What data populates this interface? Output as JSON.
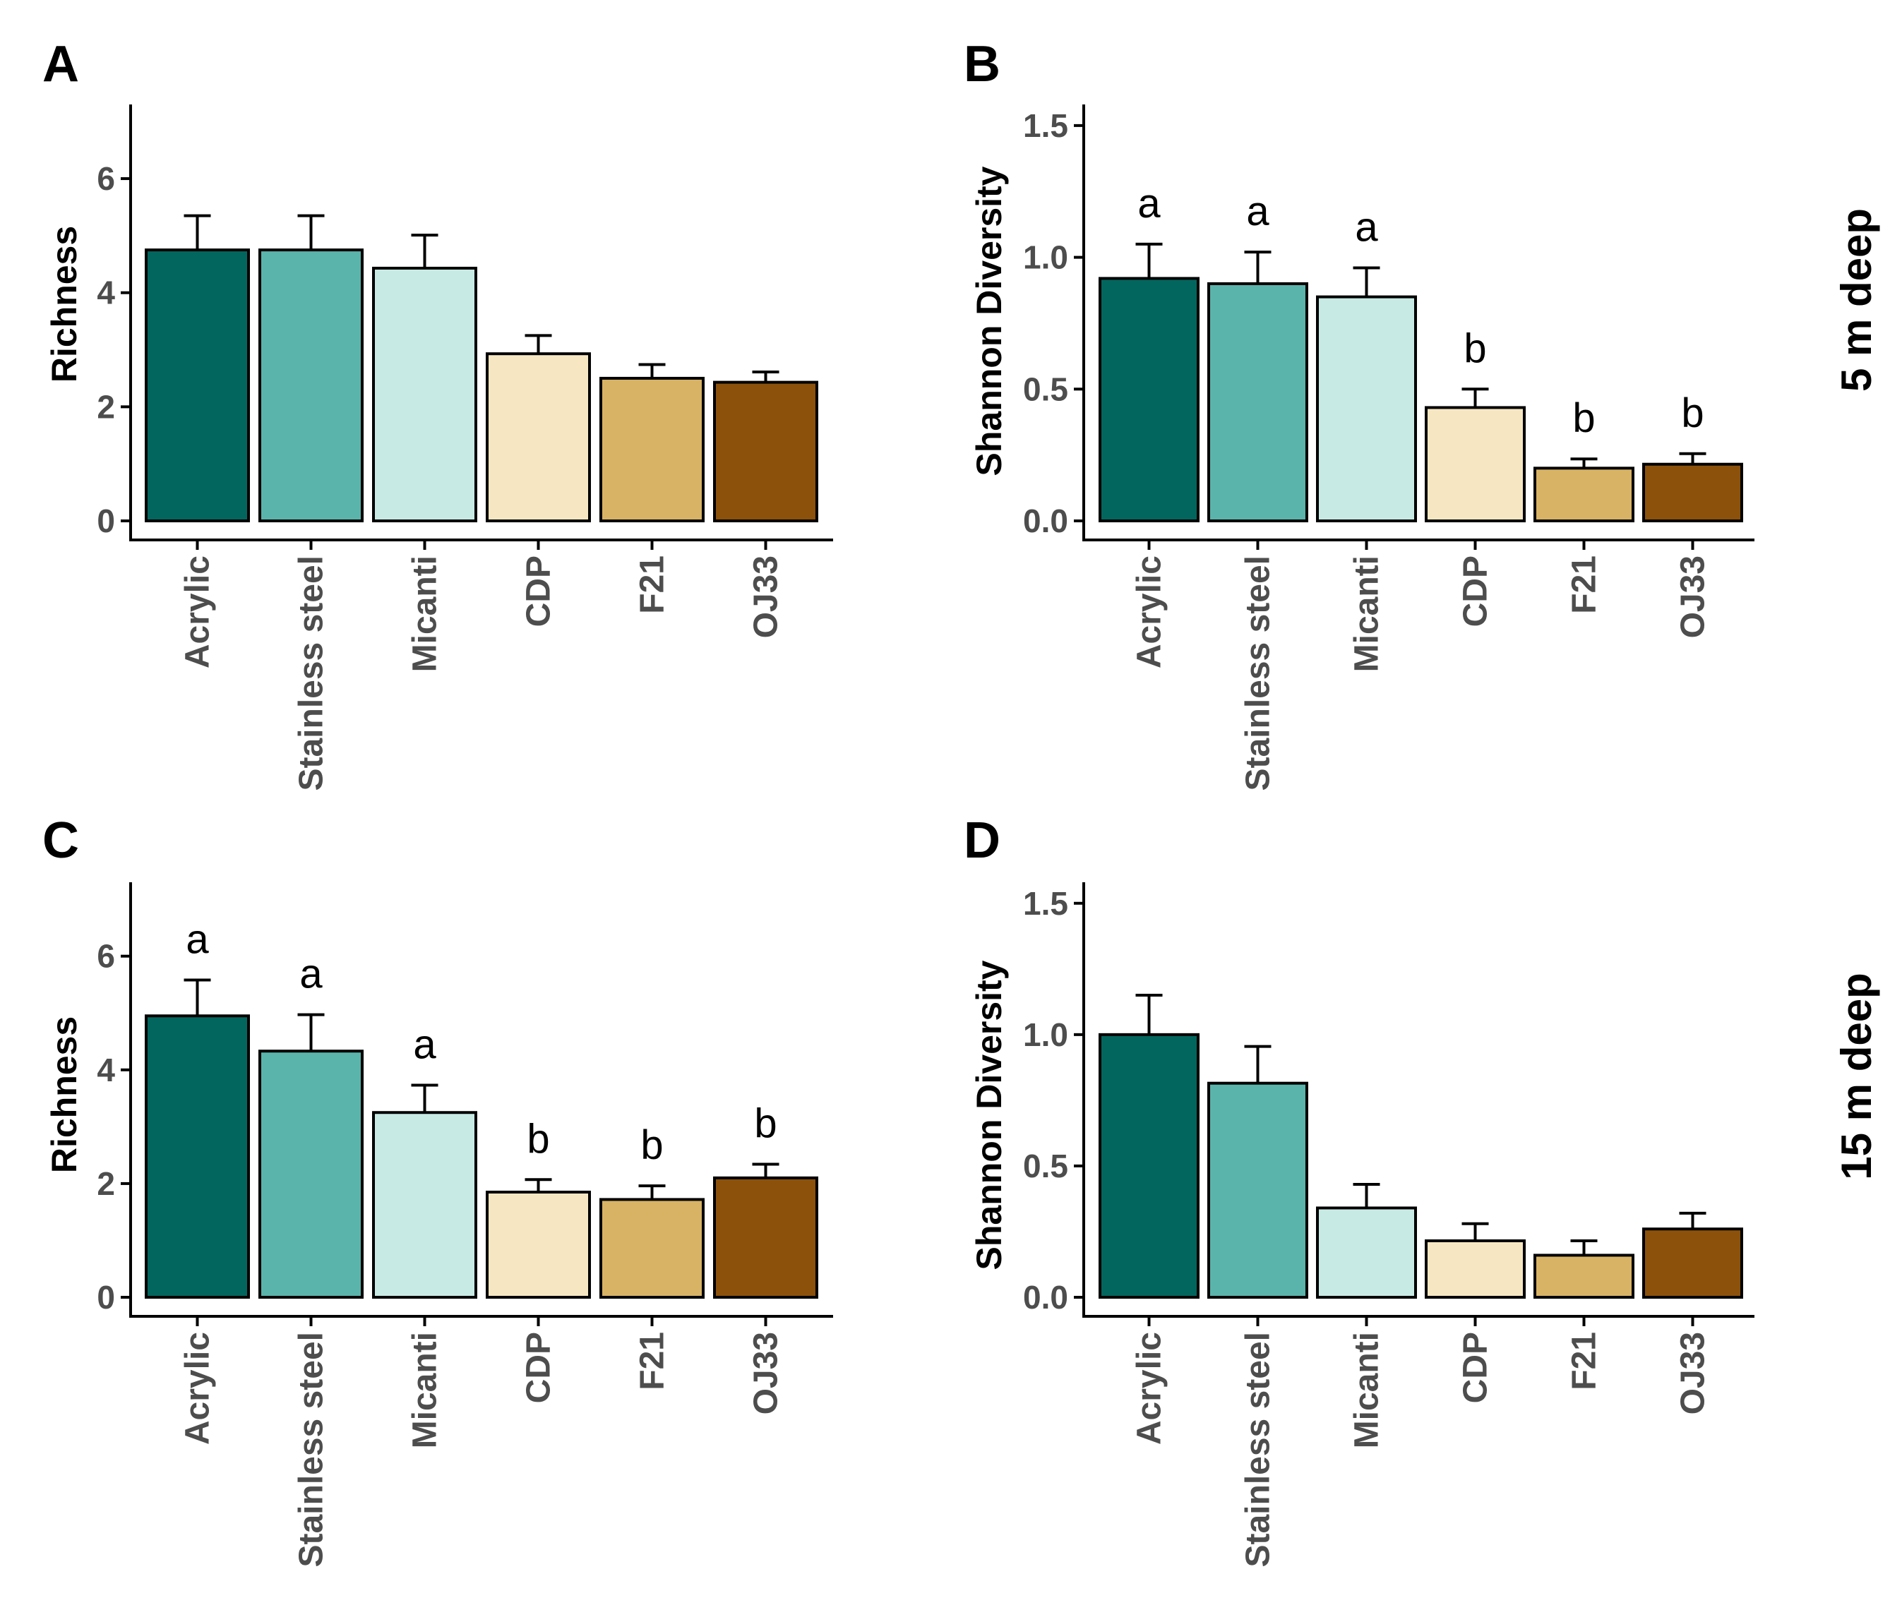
{
  "colors": {
    "Acrylic": "#03665e",
    "Stainless steel": "#5ab4ab",
    "Micanti": "#c8eae4",
    "CDP": "#f6e7c2",
    "F21": "#d8b365",
    "OJ33": "#8c510b"
  },
  "strip_labels": [
    "5 m deep",
    "15 m deep"
  ],
  "chart_data": [
    {
      "panel": "A",
      "type": "bar",
      "title": "A",
      "row_label": "5 m deep",
      "xlabel": "",
      "ylabel": "Richness",
      "ylim": [
        0,
        7.3
      ],
      "yticks": [
        0,
        2,
        4,
        6
      ],
      "yticklabels": [
        "0",
        "2",
        "4",
        "6"
      ],
      "categories": [
        "Acrylic",
        "Stainless steel",
        "Micanti",
        "CDP",
        "F21",
        "OJ33"
      ],
      "values": [
        4.75,
        4.75,
        4.43,
        2.93,
        2.5,
        2.43
      ],
      "errors": [
        0.6,
        0.6,
        0.58,
        0.32,
        0.24,
        0.18
      ],
      "significance": []
    },
    {
      "panel": "B",
      "type": "bar",
      "title": "B",
      "row_label": "5 m deep",
      "xlabel": "",
      "ylabel": "Shannon Diversity",
      "ylim": [
        0,
        1.58
      ],
      "yticks": [
        0,
        0.5,
        1,
        1.5
      ],
      "yticklabels": [
        "0.0",
        "0.5",
        "1.0",
        "1.5"
      ],
      "categories": [
        "Acrylic",
        "Stainless steel",
        "Micanti",
        "CDP",
        "F21",
        "OJ33"
      ],
      "values": [
        0.92,
        0.9,
        0.85,
        0.43,
        0.2,
        0.215
      ],
      "errors": [
        0.13,
        0.12,
        0.11,
        0.07,
        0.035,
        0.04
      ],
      "significance": [
        "a",
        "a",
        "a",
        "b",
        "b",
        "b"
      ]
    },
    {
      "panel": "C",
      "type": "bar",
      "title": "C",
      "row_label": "15 m deep",
      "xlabel": "",
      "ylabel": "Richness",
      "ylim": [
        0,
        7.3
      ],
      "yticks": [
        0,
        2,
        4,
        6
      ],
      "yticklabels": [
        "0",
        "2",
        "4",
        "6"
      ],
      "categories": [
        "Acrylic",
        "Stainless steel",
        "Micanti",
        "CDP",
        "F21",
        "OJ33"
      ],
      "values": [
        4.95,
        4.33,
        3.25,
        1.85,
        1.72,
        2.1
      ],
      "errors": [
        0.63,
        0.64,
        0.48,
        0.22,
        0.24,
        0.24
      ],
      "significance": [
        "a",
        "a",
        "a",
        "b",
        "b",
        "b"
      ]
    },
    {
      "panel": "D",
      "type": "bar",
      "title": "D",
      "row_label": "15 m deep",
      "xlabel": "",
      "ylabel": "Shannon Diversity",
      "ylim": [
        0,
        1.58
      ],
      "yticks": [
        0,
        0.5,
        1,
        1.5
      ],
      "yticklabels": [
        "0.0",
        "0.5",
        "1.0",
        "1.5"
      ],
      "categories": [
        "Acrylic",
        "Stainless steel",
        "Micanti",
        "CDP",
        "F21",
        "OJ33"
      ],
      "values": [
        1.0,
        0.815,
        0.34,
        0.215,
        0.16,
        0.26
      ],
      "errors": [
        0.15,
        0.14,
        0.09,
        0.065,
        0.055,
        0.06
      ],
      "significance": []
    }
  ]
}
